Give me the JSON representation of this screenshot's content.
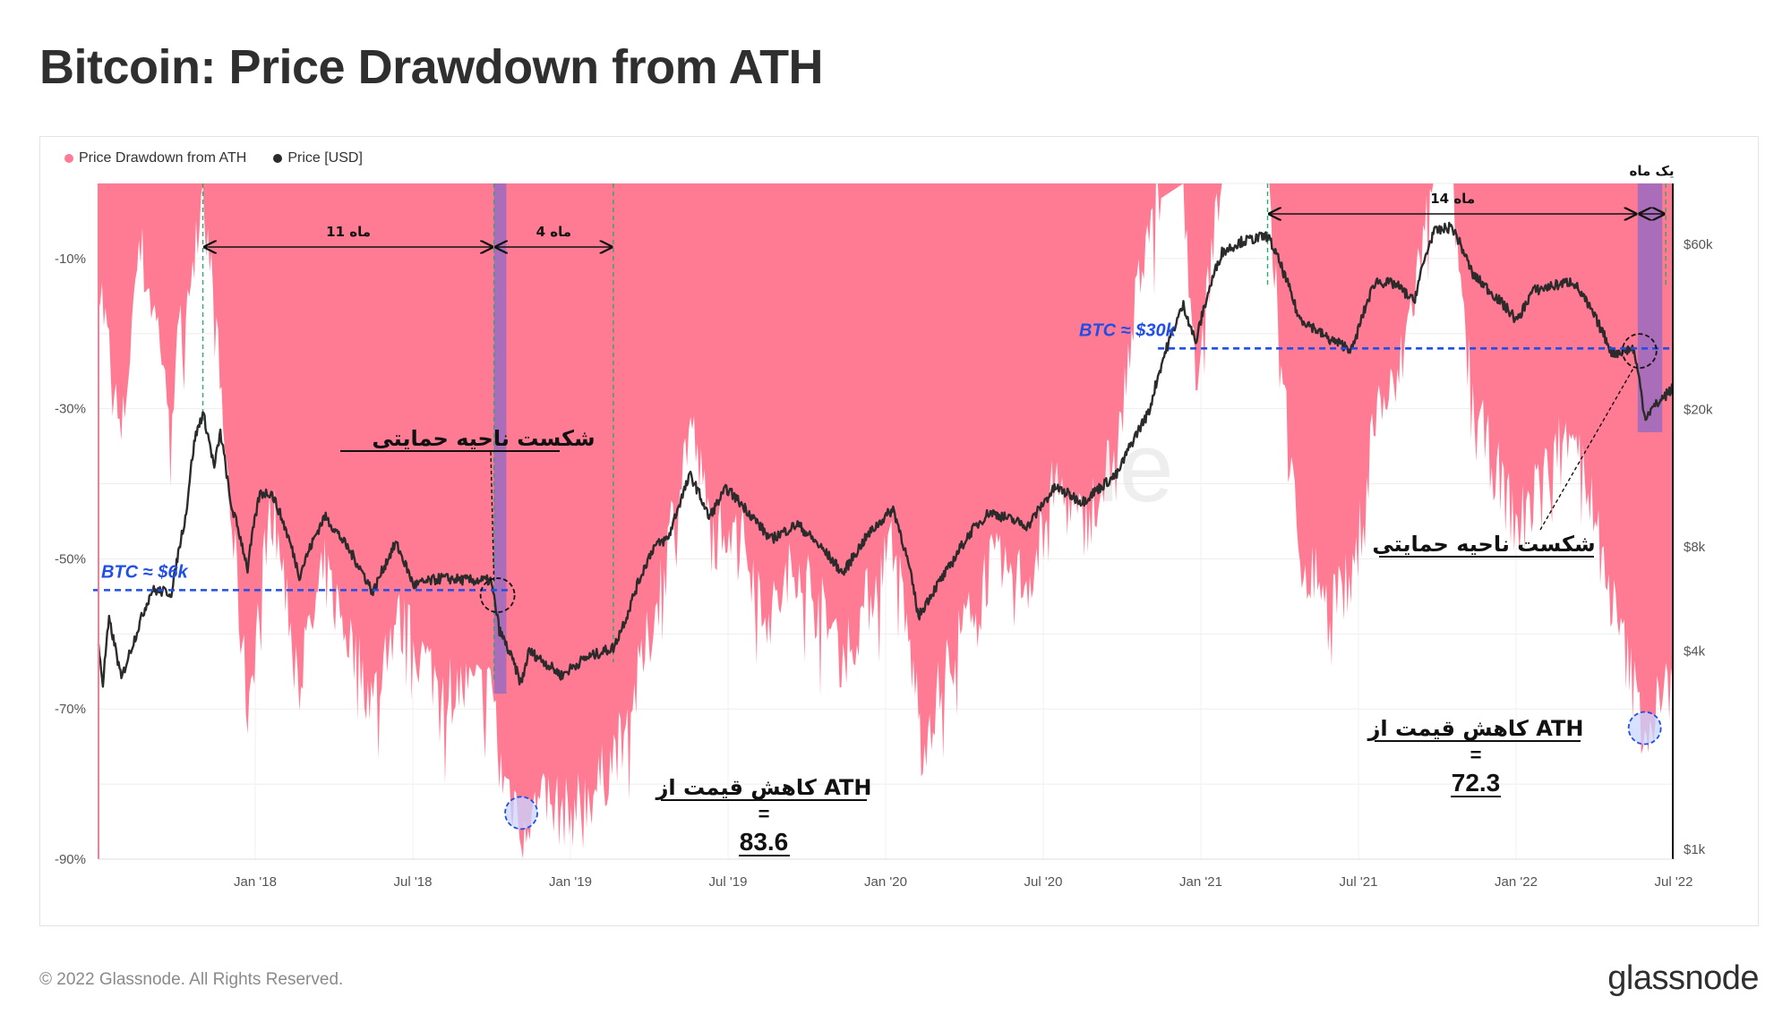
{
  "page": {
    "title": "Bitcoin: Price Drawdown from ATH",
    "copyright": "© 2022 Glassnode. All Rights Reserved.",
    "brand": "glassnode",
    "watermark": "glassnode"
  },
  "legend": [
    {
      "label": "Price Drawdown from ATH",
      "color": "#ff7a93"
    },
    {
      "label": "Price [USD]",
      "color": "#2b2b2b"
    }
  ],
  "colors": {
    "drawdown": "#ff7a93",
    "price": "#2b2b2b",
    "highlight": "#9b6bc0",
    "support_line": "#1f4fe8",
    "guide": "#2ea86b"
  },
  "chart_data": {
    "type": "area",
    "title": "Bitcoin: Price Drawdown from ATH",
    "x_ticks": [
      "Jan '18",
      "Jul '18",
      "Jan '19",
      "Jul '19",
      "Jan '20",
      "Jul '20",
      "Jan '21",
      "Jul '21",
      "Jan '22",
      "Jul '22"
    ],
    "x_range": [
      "2017-08-20",
      "2022-07-20"
    ],
    "left_axis": {
      "ticks": [
        "-10%",
        "-30%",
        "-50%",
        "-70%",
        "-90%"
      ],
      "range": [
        -90,
        0
      ]
    },
    "right_axis": {
      "scale": "log",
      "ticks": [
        "$60k",
        "$20k",
        "$8k",
        "$4k",
        "$1k"
      ],
      "range": [
        1000,
        90000
      ]
    },
    "series": [
      {
        "name": "Price Drawdown from ATH",
        "unit": "%",
        "points": [
          [
            "2017-08-20",
            -12
          ],
          [
            "2017-09-15",
            -35
          ],
          [
            "2017-10-05",
            -8
          ],
          [
            "2017-11-12",
            -28
          ],
          [
            "2017-12-17",
            0
          ],
          [
            "2018-01-15",
            -40
          ],
          [
            "2018-02-06",
            -70
          ],
          [
            "2018-03-05",
            -42
          ],
          [
            "2018-04-06",
            -66
          ],
          [
            "2018-05-05",
            -52
          ],
          [
            "2018-06-29",
            -69
          ],
          [
            "2018-07-25",
            -58
          ],
          [
            "2018-09-15",
            -67
          ],
          [
            "2018-11-14",
            -68
          ],
          [
            "2018-11-20",
            -78
          ],
          [
            "2018-12-15",
            -84
          ],
          [
            "2019-01-15",
            -83
          ],
          [
            "2019-02-08",
            -84
          ],
          [
            "2019-03-15",
            -80
          ],
          [
            "2019-04-15",
            -72
          ],
          [
            "2019-05-15",
            -58
          ],
          [
            "2019-06-26",
            -32
          ],
          [
            "2019-07-20",
            -47
          ],
          [
            "2019-08-15",
            -44
          ],
          [
            "2019-09-25",
            -58
          ],
          [
            "2019-10-26",
            -50
          ],
          [
            "2019-12-17",
            -63
          ],
          [
            "2020-02-12",
            -48
          ],
          [
            "2020-03-12",
            -70
          ],
          [
            "2020-03-15",
            -75
          ],
          [
            "2020-04-15",
            -64
          ],
          [
            "2020-06-01",
            -51
          ],
          [
            "2020-07-15",
            -53
          ],
          [
            "2020-08-15",
            -40
          ],
          [
            "2020-09-15",
            -46
          ],
          [
            "2020-10-25",
            -35
          ],
          [
            "2020-11-30",
            -3
          ],
          [
            "2021-01-08",
            0
          ],
          [
            "2021-01-22",
            -26
          ],
          [
            "2021-02-21",
            0
          ],
          [
            "2021-03-14",
            0
          ],
          [
            "2021-04-14",
            0
          ],
          [
            "2021-05-19",
            -50
          ],
          [
            "2021-06-22",
            -54
          ],
          [
            "2021-07-20",
            -54
          ],
          [
            "2021-08-15",
            -30
          ],
          [
            "2021-09-07",
            -28
          ],
          [
            "2021-10-20",
            0
          ],
          [
            "2021-11-10",
            0
          ],
          [
            "2021-12-04",
            -30
          ],
          [
            "2022-01-24",
            -46
          ],
          [
            "2022-03-28",
            -31
          ],
          [
            "2022-05-12",
            -56
          ],
          [
            "2022-06-18",
            -73
          ],
          [
            "2022-07-20",
            -66
          ]
        ]
      },
      {
        "name": "Price [USD]",
        "unit": "USD",
        "points": [
          [
            "2017-08-20",
            4100
          ],
          [
            "2017-08-25",
            3200
          ],
          [
            "2017-09-01",
            4900
          ],
          [
            "2017-09-15",
            3300
          ],
          [
            "2017-10-01",
            4400
          ],
          [
            "2017-10-20",
            6000
          ],
          [
            "2017-11-12",
            5900
          ],
          [
            "2017-11-28",
            10000
          ],
          [
            "2017-12-08",
            16500
          ],
          [
            "2017-12-17",
            19500
          ],
          [
            "2017-12-30",
            13500
          ],
          [
            "2018-01-06",
            17100
          ],
          [
            "2018-01-17",
            10800
          ],
          [
            "2018-02-06",
            6900
          ],
          [
            "2018-02-20",
            11400
          ],
          [
            "2018-03-05",
            11500
          ],
          [
            "2018-04-06",
            6600
          ],
          [
            "2018-05-05",
            9800
          ],
          [
            "2018-06-29",
            5900
          ],
          [
            "2018-07-25",
            8200
          ],
          [
            "2018-08-14",
            6200
          ],
          [
            "2018-09-15",
            6500
          ],
          [
            "2018-10-20",
            6400
          ],
          [
            "2018-11-10",
            6400
          ],
          [
            "2018-11-20",
            4600
          ],
          [
            "2018-12-15",
            3200
          ],
          [
            "2018-12-24",
            4000
          ],
          [
            "2019-01-30",
            3400
          ],
          [
            "2019-02-25",
            3800
          ],
          [
            "2019-03-31",
            4100
          ],
          [
            "2019-04-15",
            5100
          ],
          [
            "2019-05-15",
            8000
          ],
          [
            "2019-06-01",
            8500
          ],
          [
            "2019-06-26",
            12900
          ],
          [
            "2019-07-17",
            9700
          ],
          [
            "2019-08-06",
            11800
          ],
          [
            "2019-09-25",
            8400
          ],
          [
            "2019-10-26",
            9300
          ],
          [
            "2019-12-17",
            6700
          ],
          [
            "2020-01-15",
            8700
          ],
          [
            "2020-02-12",
            10300
          ],
          [
            "2020-03-12",
            5000
          ],
          [
            "2020-03-15",
            5200
          ],
          [
            "2020-04-15",
            6900
          ],
          [
            "2020-05-10",
            8800
          ],
          [
            "2020-06-01",
            10100
          ],
          [
            "2020-07-15",
            9200
          ],
          [
            "2020-08-15",
            11900
          ],
          [
            "2020-09-15",
            10800
          ],
          [
            "2020-10-25",
            13000
          ],
          [
            "2020-11-30",
            19700
          ],
          [
            "2021-01-08",
            40000
          ],
          [
            "2021-01-22",
            31000
          ],
          [
            "2021-02-21",
            57000
          ],
          [
            "2021-03-14",
            61000
          ],
          [
            "2021-04-14",
            63500
          ],
          [
            "2021-05-19",
            37000
          ],
          [
            "2021-06-22",
            32000
          ],
          [
            "2021-07-20",
            29800
          ],
          [
            "2021-08-15",
            47000
          ],
          [
            "2021-09-07",
            46000
          ],
          [
            "2021-09-28",
            41000
          ],
          [
            "2021-10-20",
            65000
          ],
          [
            "2021-11-10",
            67500
          ],
          [
            "2021-12-04",
            49000
          ],
          [
            "2022-01-24",
            36000
          ],
          [
            "2022-02-10",
            44000
          ],
          [
            "2022-03-28",
            47000
          ],
          [
            "2022-05-12",
            29000
          ],
          [
            "2022-06-05",
            30000
          ],
          [
            "2022-06-18",
            19000
          ],
          [
            "2022-07-20",
            23000
          ]
        ]
      }
    ],
    "annotations": {
      "support_lines": [
        {
          "label": "BTC ≈ $6k",
          "price": 6000,
          "from": "2017-08-20",
          "to": "2018-11-30"
        },
        {
          "label": "BTC ≈ $30k",
          "price": 30000,
          "from": "2020-12-10",
          "to": "2022-07-18"
        }
      ],
      "spans": [
        {
          "label": "11 ماه",
          "from": "2017-12-17",
          "to": "2018-11-14"
        },
        {
          "label": "4 ماه",
          "from": "2018-11-14",
          "to": "2019-03-30"
        },
        {
          "label": "14 ماه",
          "from": "2021-04-14",
          "to": "2022-06-10"
        },
        {
          "label": "یک ماه",
          "from": "2022-06-10",
          "to": "2022-07-12"
        }
      ],
      "highlights": [
        {
          "from": "2018-11-14",
          "to": "2018-11-28"
        },
        {
          "from": "2022-06-10",
          "to": "2022-07-08"
        }
      ],
      "support_break_label_1": "شکست ناحیه حمایتی",
      "support_break_label_2": "شکست ناحیه حمایتی",
      "drawdown_note_1": {
        "line1": "کاهش قیمت از ATH",
        "line2": "=",
        "line3": "83.6"
      },
      "drawdown_note_2": {
        "line1": "کاهش قیمت از ATH",
        "line2": "=",
        "line3": "72.3"
      }
    }
  }
}
